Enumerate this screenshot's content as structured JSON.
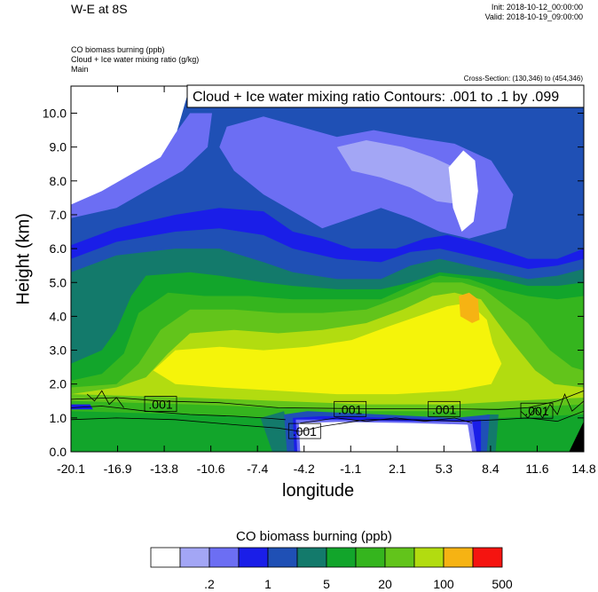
{
  "header": {
    "title": "W-E at 8S",
    "init": "Init: 2018-10-12_00:00:00",
    "valid": "Valid: 2018-10-19_09:00:00",
    "fields": [
      "CO biomass burning   (ppb)",
      "Cloud + Ice water mixing ratio   (g/kg)",
      "Main"
    ],
    "cross_section": "Cross-Section: (130,346) to (454,346)"
  },
  "colors": {
    "levels": [
      "#ffffff",
      "#a3a6f5",
      "#6c6ef3",
      "#1a1ee8",
      "#1f50b5",
      "#137a6b",
      "#12a52b",
      "#35b51e",
      "#62c41b",
      "#b2dc10",
      "#f5f40a",
      "#f6b313",
      "#f5800f",
      "#f45310",
      "#f51410"
    ]
  },
  "chart_data": {
    "type": "heatmap",
    "title": "Cloud + Ice water mixing ratio Contours: .001 to .1 by .099",
    "xlabel": "longitude",
    "ylabel": "Height (km)",
    "xlim": [
      -20.1,
      14.8
    ],
    "ylim": [
      0.0,
      10.8
    ],
    "x_ticks": [
      "-20.1",
      "-16.9",
      "-13.8",
      "-10.6",
      "-7.4",
      "-4.2",
      "-1.1",
      "2.1",
      "5.3",
      "8.4",
      "11.6",
      "14.8"
    ],
    "y_ticks": [
      "0.0",
      "1.0",
      "2.0",
      "3.0",
      "4.0",
      "5.0",
      "6.0",
      "7.0",
      "8.0",
      "9.0",
      "10.0"
    ],
    "contour_labels": [
      {
        "x": -14.0,
        "y": 1.4,
        "text": ".001"
      },
      {
        "x": -1.1,
        "y": 1.25,
        "text": ".001"
      },
      {
        "x": 5.3,
        "y": 1.25,
        "text": ".001"
      },
      {
        "x": 11.6,
        "y": 1.2,
        "text": ".001"
      },
      {
        "x": -4.2,
        "y": 0.6,
        "text": ".001"
      }
    ],
    "colorbar": {
      "title": "CO biomass burning  (ppb)",
      "labels": [
        ".2",
        "1",
        "5",
        "20",
        "100",
        "500"
      ]
    }
  }
}
